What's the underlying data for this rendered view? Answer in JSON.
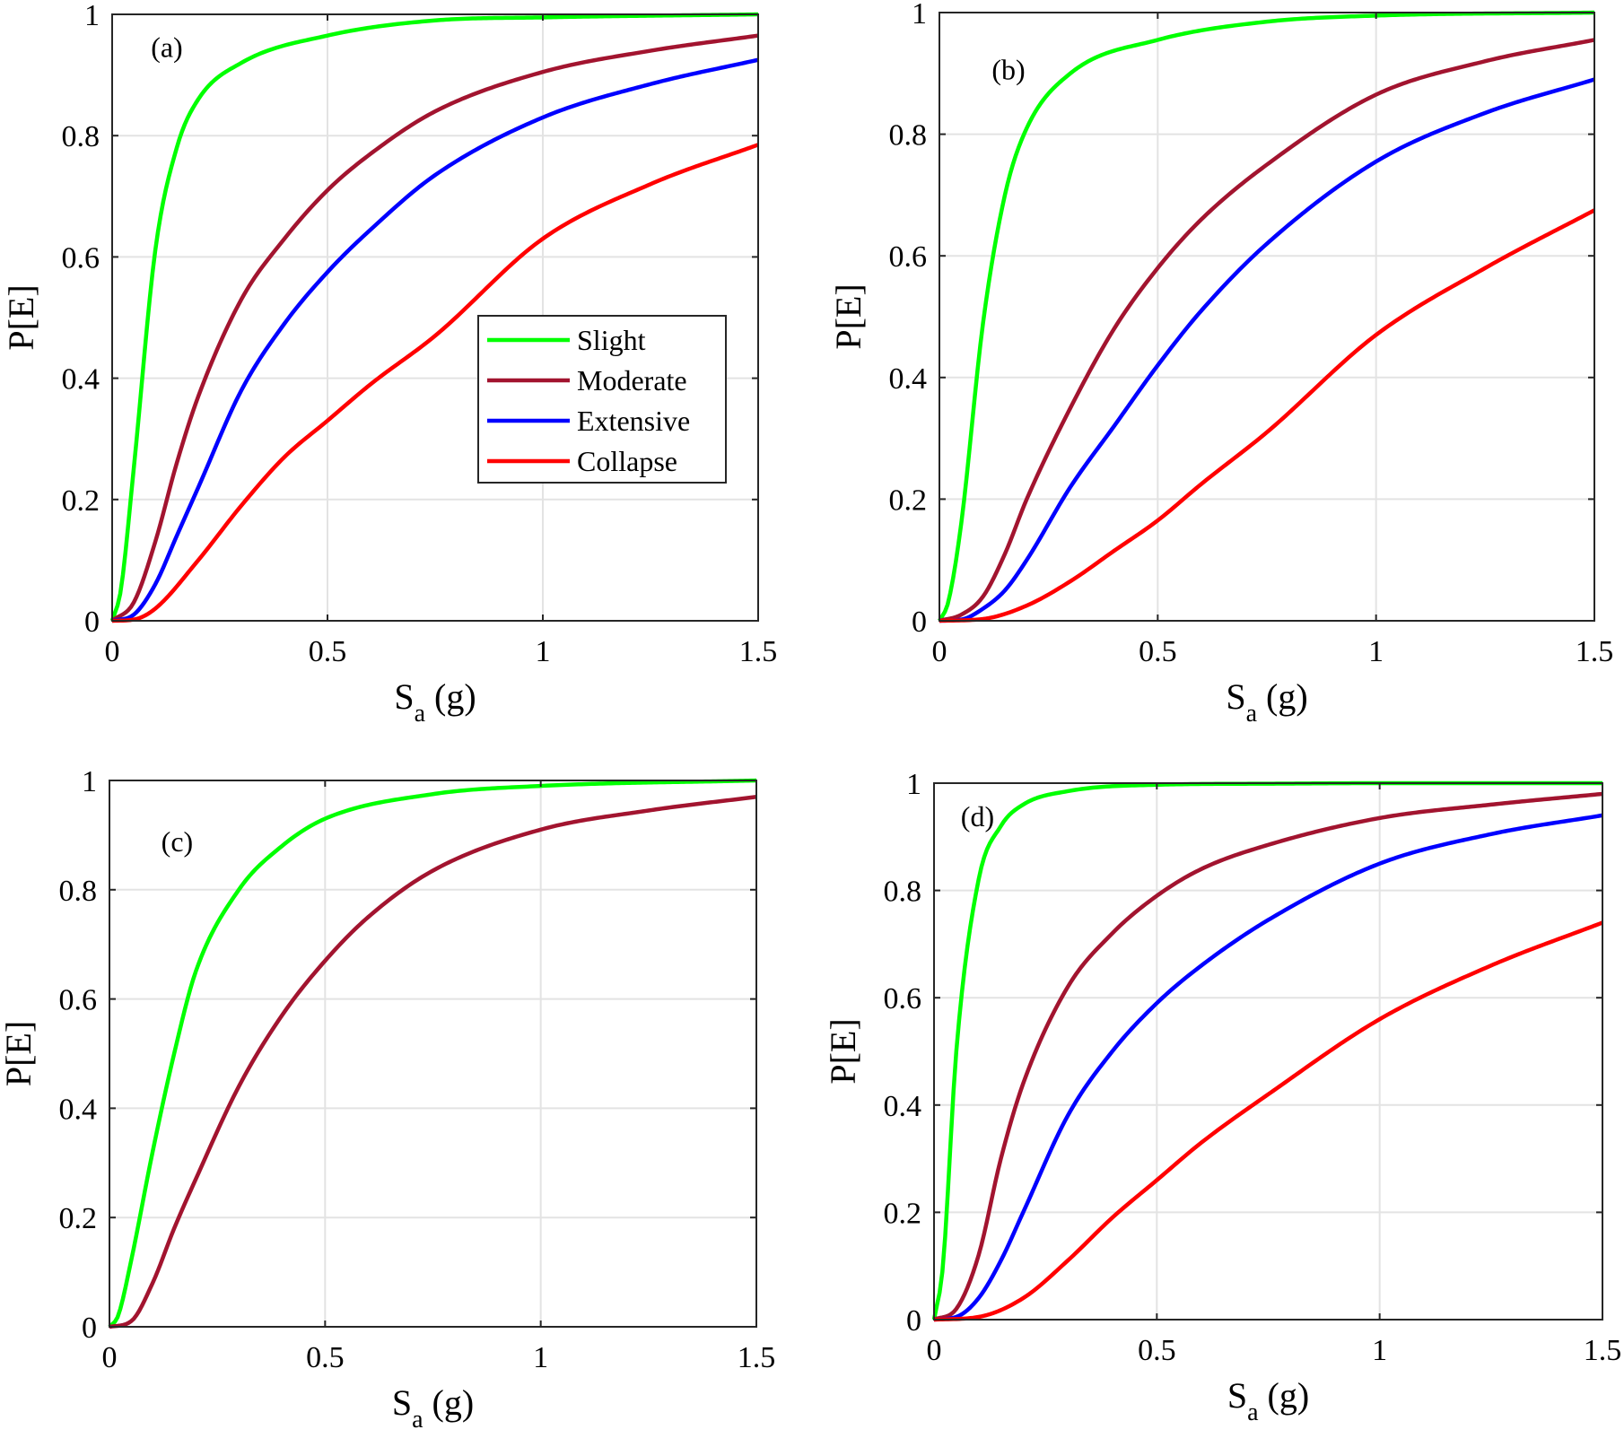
{
  "legend": {
    "entries": [
      {
        "name": "Slight",
        "color": "#00ff00"
      },
      {
        "name": "Moderate",
        "color": "#a2142f"
      },
      {
        "name": "Extensive",
        "color": "#0000ff"
      },
      {
        "name": "Collapse",
        "color": "#ff0000"
      }
    ],
    "placement": "inside panel (a), center-right"
  },
  "chart_data": [
    {
      "type": "line",
      "panel_label": "(a)",
      "xlabel": "S_a (g)",
      "ylabel": "P[E]",
      "xlim": [
        0,
        1.5
      ],
      "ylim": [
        0,
        1
      ],
      "xticks": [
        "0",
        "0.5",
        "1",
        "1.5"
      ],
      "yticks": [
        "0",
        "0.2",
        "0.4",
        "0.6",
        "0.8",
        "1"
      ],
      "grid": true,
      "legend": true,
      "series": [
        {
          "name": "Slight",
          "color": "#00ff00",
          "x": [
            0,
            0.02,
            0.05,
            0.1,
            0.15,
            0.2,
            0.3,
            0.5,
            0.75,
            1,
            1.5
          ],
          "y": [
            0,
            0.05,
            0.25,
            0.61,
            0.78,
            0.86,
            0.92,
            0.965,
            0.99,
            0.995,
            1.0
          ]
        },
        {
          "name": "Moderate",
          "color": "#a2142f",
          "x": [
            0,
            0.05,
            0.1,
            0.15,
            0.2,
            0.3,
            0.4,
            0.5,
            0.6,
            0.75,
            1,
            1.25,
            1.5
          ],
          "y": [
            0,
            0.03,
            0.13,
            0.26,
            0.37,
            0.53,
            0.63,
            0.71,
            0.77,
            0.84,
            0.905,
            0.94,
            0.965
          ]
        },
        {
          "name": "Extensive",
          "color": "#0000ff",
          "x": [
            0,
            0.05,
            0.1,
            0.15,
            0.2,
            0.3,
            0.4,
            0.5,
            0.6,
            0.75,
            1,
            1.25,
            1.5
          ],
          "y": [
            0,
            0.01,
            0.06,
            0.14,
            0.22,
            0.38,
            0.49,
            0.575,
            0.645,
            0.735,
            0.83,
            0.885,
            0.925
          ]
        },
        {
          "name": "Collapse",
          "color": "#ff0000",
          "x": [
            0,
            0.05,
            0.1,
            0.2,
            0.3,
            0.4,
            0.5,
            0.6,
            0.75,
            1,
            1.25,
            1.5
          ],
          "y": [
            0,
            0.002,
            0.02,
            0.1,
            0.19,
            0.27,
            0.33,
            0.39,
            0.47,
            0.63,
            0.72,
            0.785
          ]
        }
      ]
    },
    {
      "type": "line",
      "panel_label": "(b)",
      "xlabel": "S_a (g)",
      "ylabel": "P[E]",
      "xlim": [
        0,
        1.5
      ],
      "ylim": [
        0,
        1
      ],
      "xticks": [
        "0",
        "0.5",
        "1",
        "1.5"
      ],
      "yticks": [
        "0",
        "0.2",
        "0.4",
        "0.6",
        "0.8",
        "1"
      ],
      "grid": true,
      "legend": false,
      "series": [
        {
          "name": "Slight",
          "color": "#00ff00",
          "x": [
            0,
            0.02,
            0.05,
            0.1,
            0.15,
            0.2,
            0.3,
            0.5,
            0.75,
            1,
            1.5
          ],
          "y": [
            0,
            0.03,
            0.16,
            0.49,
            0.7,
            0.81,
            0.9,
            0.955,
            0.985,
            0.995,
            1.0
          ]
        },
        {
          "name": "Moderate",
          "color": "#a2142f",
          "x": [
            0,
            0.05,
            0.1,
            0.15,
            0.2,
            0.3,
            0.4,
            0.5,
            0.6,
            0.75,
            1,
            1.25,
            1.5
          ],
          "y": [
            0,
            0.01,
            0.04,
            0.11,
            0.2,
            0.35,
            0.48,
            0.58,
            0.66,
            0.75,
            0.865,
            0.92,
            0.955
          ]
        },
        {
          "name": "Extensive",
          "color": "#0000ff",
          "x": [
            0,
            0.05,
            0.1,
            0.15,
            0.2,
            0.3,
            0.4,
            0.5,
            0.6,
            0.75,
            1,
            1.25,
            1.5
          ],
          "y": [
            0,
            0.002,
            0.02,
            0.05,
            0.1,
            0.22,
            0.32,
            0.42,
            0.51,
            0.62,
            0.755,
            0.835,
            0.89
          ]
        },
        {
          "name": "Collapse",
          "color": "#ff0000",
          "x": [
            0,
            0.1,
            0.2,
            0.3,
            0.4,
            0.5,
            0.6,
            0.75,
            1,
            1.25,
            1.5
          ],
          "y": [
            0,
            0.003,
            0.025,
            0.065,
            0.115,
            0.165,
            0.225,
            0.31,
            0.47,
            0.58,
            0.675
          ]
        }
      ]
    },
    {
      "type": "line",
      "panel_label": "(c)",
      "xlabel": "S_a (g)",
      "ylabel": "P[E]",
      "xlim": [
        0,
        1.5
      ],
      "ylim": [
        0,
        1
      ],
      "xticks": [
        "0",
        "0.5",
        "1",
        "1.5"
      ],
      "yticks": [
        "0",
        "0.2",
        "0.4",
        "0.6",
        "0.8",
        "1"
      ],
      "grid": true,
      "legend": false,
      "series": [
        {
          "name": "Slight",
          "color": "#00ff00",
          "x": [
            0,
            0.02,
            0.05,
            0.1,
            0.15,
            0.2,
            0.3,
            0.4,
            0.5,
            0.75,
            1,
            1.5
          ],
          "y": [
            0,
            0.02,
            0.12,
            0.32,
            0.5,
            0.65,
            0.8,
            0.88,
            0.93,
            0.975,
            0.99,
            1.0
          ]
        },
        {
          "name": "Moderate",
          "color": "#a2142f",
          "x": [
            0,
            0.05,
            0.1,
            0.15,
            0.2,
            0.3,
            0.4,
            0.5,
            0.6,
            0.75,
            1,
            1.25,
            1.5
          ],
          "y": [
            0,
            0.01,
            0.08,
            0.18,
            0.27,
            0.44,
            0.57,
            0.67,
            0.75,
            0.835,
            0.91,
            0.945,
            0.97
          ]
        }
      ]
    },
    {
      "type": "line",
      "panel_label": "(d)",
      "xlabel": "S_a (g)",
      "ylabel": "P[E]",
      "xlim": [
        0,
        1.5
      ],
      "ylim": [
        0,
        1
      ],
      "xticks": [
        "0",
        "0.5",
        "1",
        "1.5"
      ],
      "yticks": [
        "0",
        "0.2",
        "0.4",
        "0.6",
        "0.8",
        "1"
      ],
      "grid": true,
      "legend": false,
      "series": [
        {
          "name": "Slight",
          "color": "#00ff00",
          "x": [
            0,
            0.02,
            0.05,
            0.1,
            0.15,
            0.2,
            0.3,
            0.5,
            0.75,
            1,
            1.5
          ],
          "y": [
            0,
            0.1,
            0.5,
            0.82,
            0.92,
            0.96,
            0.985,
            0.997,
            0.999,
            1.0,
            1.0
          ]
        },
        {
          "name": "Moderate",
          "color": "#a2142f",
          "x": [
            0,
            0.05,
            0.1,
            0.15,
            0.2,
            0.3,
            0.4,
            0.5,
            0.6,
            0.75,
            1,
            1.25,
            1.5
          ],
          "y": [
            0,
            0.02,
            0.12,
            0.3,
            0.44,
            0.62,
            0.72,
            0.79,
            0.84,
            0.885,
            0.935,
            0.96,
            0.98
          ]
        },
        {
          "name": "Extensive",
          "color": "#0000ff",
          "x": [
            0,
            0.05,
            0.1,
            0.15,
            0.2,
            0.3,
            0.4,
            0.5,
            0.6,
            0.75,
            1,
            1.25,
            1.5
          ],
          "y": [
            0,
            0.005,
            0.04,
            0.11,
            0.2,
            0.38,
            0.5,
            0.59,
            0.66,
            0.745,
            0.85,
            0.905,
            0.94
          ]
        },
        {
          "name": "Collapse",
          "color": "#ff0000",
          "x": [
            0,
            0.1,
            0.2,
            0.3,
            0.4,
            0.5,
            0.6,
            0.75,
            1,
            1.25,
            1.5
          ],
          "y": [
            0,
            0.005,
            0.04,
            0.11,
            0.19,
            0.26,
            0.33,
            0.42,
            0.56,
            0.66,
            0.74
          ]
        }
      ]
    }
  ]
}
